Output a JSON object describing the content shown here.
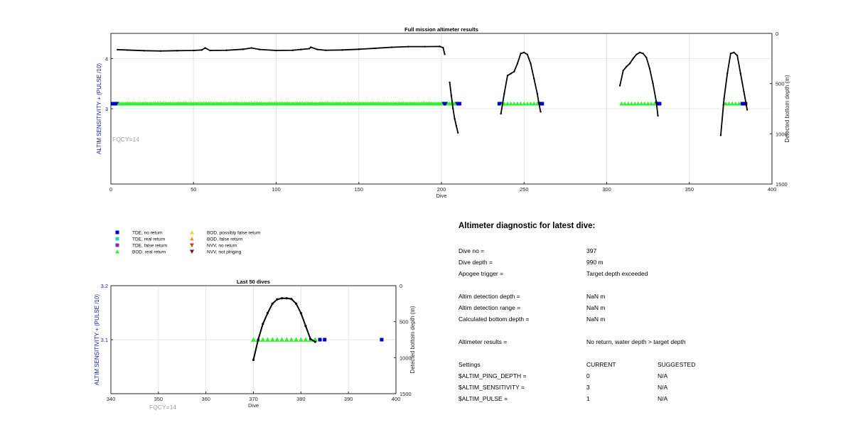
{
  "chart_data": [
    {
      "type": "scatter",
      "title": "Full mission altimeter results",
      "xlabel": "Dive",
      "ylabel": "ALTIM SENSITIVITY + (PULSE /10)",
      "ylabel_right": "Detected bottom depth (m)",
      "xlim": [
        0,
        400
      ],
      "ylim": [
        1.5,
        4.5
      ],
      "ylim_right": [
        0,
        1500
      ],
      "right_axis_reversed": true,
      "xticks": [
        0,
        50,
        100,
        150,
        200,
        250,
        300,
        350,
        400
      ],
      "yticks": [
        3,
        4
      ],
      "yticks_right": [
        0,
        500,
        1000,
        1500
      ],
      "grid": true,
      "annotation": "FQCY=14",
      "colors": {
        "tde_no_return": "#0000cc",
        "bod_real_return": "#33ee33",
        "depth_line": "#000000"
      },
      "series": [
        {
          "name": "TDE, no return",
          "marker": "square",
          "color": "#0000cc",
          "x": [
            1,
            2,
            3,
            4,
            201,
            202,
            203,
            209,
            210,
            211,
            235,
            236,
            259,
            260,
            261,
            330,
            331,
            332,
            382,
            383,
            384
          ],
          "y": [
            3.1,
            3.1,
            3.1,
            3.1,
            3.1,
            3.1,
            3.1,
            3.1,
            3.1,
            3.1,
            3.1,
            3.1,
            3.1,
            3.1,
            3.1,
            3.1,
            3.1,
            3.1,
            3.1,
            3.1,
            3.1
          ]
        },
        {
          "name": "BOD, real return",
          "marker": "triangle",
          "color": "#33ee33",
          "x_range": [
            5,
            200
          ],
          "extra_x": [
            204,
            205,
            206,
            207,
            208,
            237,
            238,
            240,
            242,
            244,
            246,
            248,
            250,
            252,
            254,
            256,
            258,
            309,
            311,
            313,
            315,
            317,
            319,
            321,
            323,
            325,
            327,
            329,
            371,
            372,
            374,
            376,
            378,
            380
          ],
          "y": 3.1
        },
        {
          "name": "bottom depth",
          "axis": "right",
          "color": "#000000",
          "segments": [
            {
              "x": [
                4,
                10,
                20,
                30,
                40,
                50,
                55,
                57,
                60,
                70,
                80,
                85,
                90,
                100,
                110,
                115,
                120,
                121,
                125,
                130,
                140,
                150,
                160,
                170,
                180,
                190,
                199,
                201,
                202
              ],
              "y": [
                162,
                166,
                172,
                175,
                172,
                170,
                165,
                145,
                170,
                168,
                158,
                145,
                160,
                170,
                168,
                160,
                152,
                138,
                160,
                168,
                165,
                158,
                148,
                138,
                132,
                132,
                130,
                142,
                208
              ]
            },
            {
              "x": [
                205,
                206,
                207,
                208,
                209,
                210
              ],
              "y": [
                488,
                620,
                750,
                850,
                920,
                990
              ]
            },
            {
              "x": [
                236,
                238,
                240,
                242,
                244,
                246,
                248,
                250,
                252,
                254,
                256,
                258,
                259,
                260
              ],
              "y": [
                800,
                600,
                420,
                400,
                380,
                300,
                200,
                190,
                210,
                300,
                450,
                600,
                700,
                780
              ]
            },
            {
              "x": [
                308,
                310,
                312,
                314,
                316,
                318,
                320,
                322,
                324,
                326,
                328,
                330,
                331
              ],
              "y": [
                520,
                370,
                330,
                300,
                250,
                210,
                190,
                200,
                240,
                350,
                500,
                680,
                820
              ]
            },
            {
              "x": [
                369,
                371,
                373,
                375,
                377,
                379,
                381,
                383,
                385
              ],
              "y": [
                1015,
                650,
                400,
                200,
                190,
                220,
                400,
                580,
                760
              ]
            }
          ]
        }
      ]
    },
    {
      "type": "scatter",
      "title": "Last 50 dives",
      "xlabel": "Dive",
      "ylabel": "ALTIM SENSITIVITY + (PULSE /10)",
      "ylabel_right": "Detected bottom depth (m)",
      "xlim": [
        340,
        400
      ],
      "ylim": [
        3.0,
        3.2
      ],
      "ylim_right": [
        0,
        1500
      ],
      "right_axis_reversed": true,
      "xticks": [
        340,
        350,
        360,
        370,
        380,
        390,
        400
      ],
      "yticks": [
        3.1,
        3.2
      ],
      "yticks_right": [
        0,
        500,
        1000,
        1500
      ],
      "grid": true,
      "annotation": "FQCY=14",
      "series": [
        {
          "name": "TDE, no return",
          "marker": "square",
          "color": "#0000cc",
          "x": [
            384,
            385,
            397
          ],
          "y": [
            3.1,
            3.1,
            3.1
          ]
        },
        {
          "name": "BOD, real return",
          "marker": "triangle",
          "color": "#33ee33",
          "x": [
            370,
            371,
            372,
            373,
            374,
            375,
            376,
            377,
            378,
            379,
            380,
            381,
            382,
            383
          ],
          "y": 3.1
        },
        {
          "name": "bottom depth",
          "axis": "right",
          "color": "#000000",
          "segments": [
            {
              "x": [
                370,
                371,
                372,
                373,
                374,
                375,
                376,
                377,
                378,
                379,
                380,
                381,
                382,
                383
              ],
              "y": [
                1030,
                750,
                530,
                380,
                250,
                190,
                175,
                175,
                185,
                250,
                380,
                560,
                740,
                780
              ]
            }
          ]
        }
      ]
    }
  ],
  "legend": {
    "items": [
      {
        "label": "TDE, no return",
        "marker": "square",
        "color": "#0000cc"
      },
      {
        "label": "TDE, real return",
        "marker": "square",
        "color": "#33cccc"
      },
      {
        "label": "TDE, false return",
        "marker": "square",
        "color": "#7b2fbf"
      },
      {
        "label": "BOD, real return",
        "marker": "triangle",
        "color": "#33ee33"
      },
      {
        "label": "BOD, possibly false return",
        "marker": "triangle",
        "color": "#f2d21b"
      },
      {
        "label": "BOD, false return",
        "marker": "triangle",
        "color": "#f29a1b"
      },
      {
        "label": "NVV, no return",
        "marker": "triangle-down",
        "color": "#d9361b"
      },
      {
        "label": "NVV, not pinging",
        "marker": "triangle-down",
        "color": "#7a1010"
      }
    ]
  },
  "diagnostic": {
    "heading": "Altimeter diagnostic for latest dive:",
    "dive_no_label": "Dive no =",
    "dive_no_value": "397",
    "dive_depth_label": "Dive depth =",
    "dive_depth_value": "990 m",
    "apogee_label": "Apogee trigger =",
    "apogee_value": "Target depth exceeded",
    "det_depth_label": "Altim detection depth =",
    "det_depth_value": "NaN m",
    "det_range_label": "Altim detection range =",
    "det_range_value": "NaN m",
    "calc_depth_label": "Calculated bottom depth =",
    "calc_depth_value": "NaN m",
    "results_label": "Altimeter results =",
    "results_value": "No return, water depth > target depth",
    "settings_label": "Settings",
    "current_label": "CURRENT",
    "suggested_label": "SUGGESTED",
    "ping_label": "$ALTIM_PING_DEPTH =",
    "ping_current": "0",
    "ping_suggested": "N/A",
    "sens_label": "$ALTIM_SENSITIVITY =",
    "sens_current": "3",
    "sens_suggested": "N/A",
    "pulse_label": "$ALTIM_PULSE =",
    "pulse_current": "1",
    "pulse_suggested": "N/A"
  }
}
